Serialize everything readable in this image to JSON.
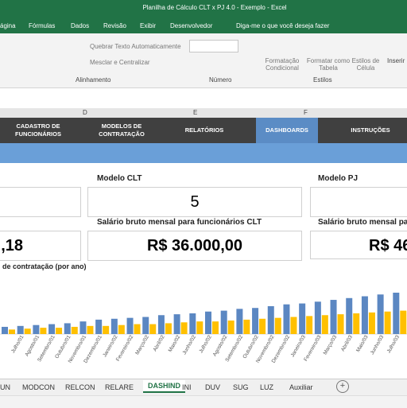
{
  "window": {
    "title": "Planilha de Cálculo CLT x PJ 4.0 - Exemplo  -  Excel"
  },
  "menu": [
    "ágina",
    "Fórmulas",
    "Dados",
    "Revisão",
    "Exibir",
    "Desenvolvedor",
    "Diga-me o que você deseja fazer"
  ],
  "ribbon": {
    "wrap_text": "Quebrar Texto Automaticamente",
    "merge": "Mesclar e Centralizar",
    "alignment": "Alinhamento",
    "number": "Número",
    "conditional": "Formatação Condicional",
    "format_table": "Formatar como Tabela",
    "cell_styles": "Estilos de Célula",
    "styles": "Estilos",
    "insert": "Inserir"
  },
  "columns": [
    "D",
    "E",
    "F"
  ],
  "nav": [
    "CADASTRO DE FUNCIONÁRIOS",
    "MODELOS DE CONTRATAÇÃO",
    "RELATÓRIOS",
    "DASHBOARDS",
    "INSTRUÇÕES"
  ],
  "cards": {
    "clt_title": "Modelo CLT",
    "clt_value": "5",
    "pj_title": "Modelo PJ",
    "left_value": ",18",
    "salary_clt_title": "Salário bruto mensal para funcionários CLT",
    "salary_clt_value": "R$ 36.000,00",
    "salary_pj_title": "Salário bruto mensal para",
    "salary_pj_value": "R$ 46"
  },
  "chart_data": {
    "type": "bar",
    "title": "de contratação (por ano)",
    "categories": [
      null,
      "Julho/01",
      "Agosto/01",
      "Setembro/01",
      "Outubro/01",
      "Novembro/01",
      "Dezembro/01",
      "Janeiro/02",
      "Fevereiro/02",
      "Março/02",
      "Abril/02",
      "Maio/02",
      "Junho/02",
      "Julho/02",
      "Agosto/02",
      "Setembro/02",
      "Outubro/02",
      "Novembro/02",
      "Dezembro/02",
      "Janeiro/03",
      "Fevereiro/03",
      "Março/03",
      "Abril/03",
      "Maio/03",
      "Junho/03",
      "Julho/03"
    ],
    "series": [
      {
        "color": "#5b87c2",
        "values": [
          8,
          9,
          10,
          11,
          12,
          14,
          16,
          17,
          18,
          19,
          21,
          22,
          23,
          25,
          26,
          28,
          29,
          31,
          33,
          34,
          36,
          38,
          40,
          42,
          44,
          46
        ]
      },
      {
        "color": "#ffc000",
        "values": [
          5,
          6,
          7,
          7,
          8,
          9,
          9,
          10,
          11,
          11,
          12,
          13,
          14,
          14,
          15,
          16,
          17,
          18,
          19,
          20,
          21,
          22,
          23,
          24,
          25,
          26
        ]
      }
    ]
  },
  "sheets": [
    "UN",
    "MODCON",
    "RELCON",
    "RELARE",
    "DASHIND",
    "INI",
    "DUV",
    "SUG",
    "LUZ",
    "Auxiliar"
  ]
}
